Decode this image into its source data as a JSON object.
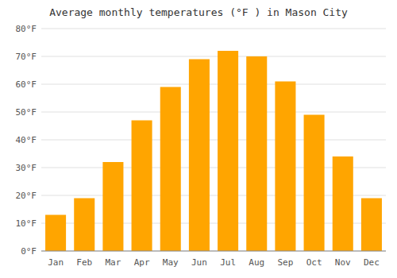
{
  "chart_data": {
    "type": "bar",
    "title": "Average monthly temperatures (°F ) in Mason City",
    "categories": [
      "Jan",
      "Feb",
      "Mar",
      "Apr",
      "May",
      "Jun",
      "Jul",
      "Aug",
      "Sep",
      "Oct",
      "Nov",
      "Dec"
    ],
    "values": [
      13,
      19,
      32,
      47,
      59,
      69,
      72,
      70,
      61,
      49,
      34,
      19
    ],
    "color": "#FFA500",
    "ylim": [
      0,
      80
    ],
    "yticks": [
      {
        "value": 0,
        "label": "0°F"
      },
      {
        "value": 10,
        "label": "10°F"
      },
      {
        "value": 20,
        "label": "20°F"
      },
      {
        "value": 30,
        "label": "30°F"
      },
      {
        "value": 40,
        "label": "40°F"
      },
      {
        "value": 50,
        "label": "50°F"
      },
      {
        "value": 60,
        "label": "60°F"
      },
      {
        "value": 70,
        "label": "70°F"
      },
      {
        "value": 80,
        "label": "80°F"
      }
    ],
    "grid": true
  }
}
